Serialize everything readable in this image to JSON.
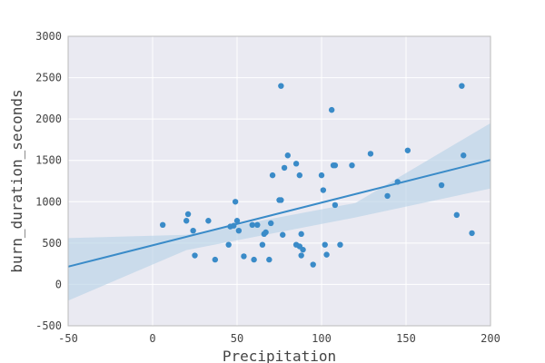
{
  "chart_data": {
    "type": "scatter",
    "title": "",
    "xlabel": "Precipitation",
    "ylabel": "burn_duration_seconds",
    "xlim": [
      -50,
      200
    ],
    "ylim": [
      -500,
      3000
    ],
    "x_ticks": [
      "-50",
      "0",
      "50",
      "100",
      "150",
      "200"
    ],
    "y_ticks": [
      "-500",
      "0",
      "500",
      "1000",
      "1500",
      "2000",
      "2500",
      "3000"
    ],
    "grid": true,
    "legend": "none",
    "colors": {
      "points": "#3a8bc8",
      "line": "#3a8bc8",
      "band": "#b9d3e6",
      "plot_background": "#eaeaf2",
      "grid": "#ffffff"
    },
    "series": [
      {
        "points": [
          [
            6,
            720
          ],
          [
            20,
            770
          ],
          [
            21,
            850
          ],
          [
            24,
            650
          ],
          [
            25,
            350
          ],
          [
            33,
            770
          ],
          [
            37,
            300
          ],
          [
            45,
            480
          ],
          [
            46,
            700
          ],
          [
            48,
            710
          ],
          [
            49,
            1000
          ],
          [
            50,
            770
          ],
          [
            51,
            650
          ],
          [
            54,
            340
          ],
          [
            59,
            720
          ],
          [
            60,
            300
          ],
          [
            62,
            720
          ],
          [
            65,
            480
          ],
          [
            66,
            610
          ],
          [
            67,
            630
          ],
          [
            69,
            300
          ],
          [
            70,
            740
          ],
          [
            71,
            1320
          ],
          [
            75,
            1020
          ],
          [
            76,
            1020
          ],
          [
            76,
            2400
          ],
          [
            77,
            600
          ],
          [
            78,
            1410
          ],
          [
            80,
            1560
          ],
          [
            85,
            1460
          ],
          [
            85,
            480
          ],
          [
            87,
            460
          ],
          [
            87,
            1320
          ],
          [
            88,
            610
          ],
          [
            88,
            350
          ],
          [
            89,
            420
          ],
          [
            95,
            240
          ],
          [
            100,
            1320
          ],
          [
            101,
            1140
          ],
          [
            102,
            480
          ],
          [
            103,
            360
          ],
          [
            106,
            2110
          ],
          [
            107,
            1440
          ],
          [
            108,
            1440
          ],
          [
            108,
            960
          ],
          [
            111,
            480
          ],
          [
            118,
            1440
          ],
          [
            129,
            1580
          ],
          [
            139,
            1070
          ],
          [
            145,
            1240
          ],
          [
            151,
            1620
          ],
          [
            171,
            1200
          ],
          [
            180,
            840
          ],
          [
            183,
            2400
          ],
          [
            184,
            1560
          ],
          [
            189,
            620
          ]
        ]
      }
    ],
    "regression": {
      "x": [
        -50,
        200
      ],
      "y": [
        215,
        1505
      ],
      "ci_lower": [
        -195,
        1160
      ],
      "ci_mid_lower": [
        415,
        810
      ],
      "ci_mid_upper": [
        600,
        985
      ],
      "ci_mid_x": [
        20,
        120
      ],
      "ci_upper": [
        560,
        1950
      ]
    }
  }
}
